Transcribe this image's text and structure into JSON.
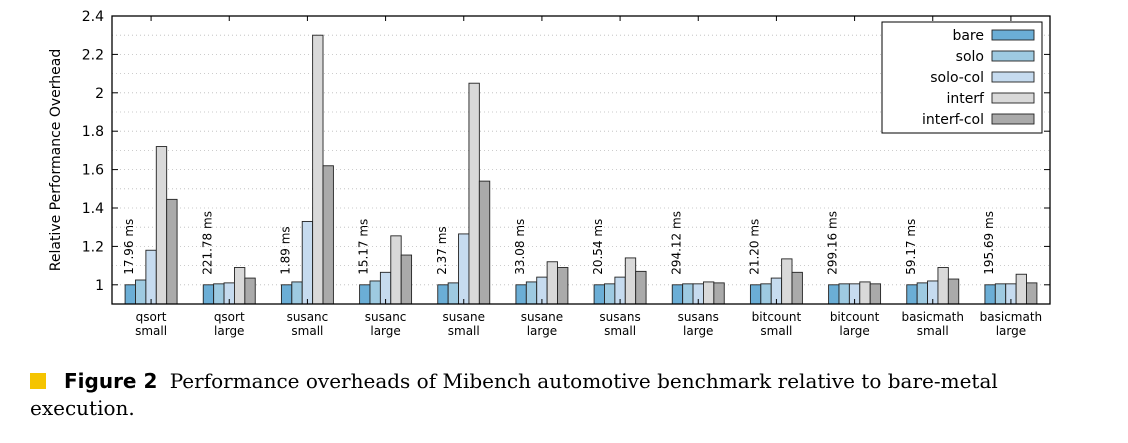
{
  "chart_data": {
    "type": "bar",
    "ylabel": "Relative Performance Overhead",
    "ylim": [
      0.9,
      2.4
    ],
    "yticks": [
      "1",
      "1.2",
      "1.4",
      "1.6",
      "1.8",
      "2",
      "2.2",
      "2.4"
    ],
    "ytick_values": [
      1,
      1.2,
      1.4,
      1.6,
      1.8,
      2,
      2.2,
      2.4
    ],
    "grid": true,
    "legend_position": "top-right",
    "categories": [
      [
        "qsort",
        "small"
      ],
      [
        "qsort",
        "large"
      ],
      [
        "susanc",
        "small"
      ],
      [
        "susanc",
        "large"
      ],
      [
        "susane",
        "small"
      ],
      [
        "susane",
        "large"
      ],
      [
        "susans",
        "small"
      ],
      [
        "susans",
        "large"
      ],
      [
        "bitcount",
        "small"
      ],
      [
        "bitcount",
        "large"
      ],
      [
        "basicmath",
        "small"
      ],
      [
        "basicmath",
        "large"
      ]
    ],
    "bar_annotations": [
      "17.96 ms",
      "221.78 ms",
      "1.89 ms",
      "15.17 ms",
      "2.37 ms",
      "33.08 ms",
      "20.54 ms",
      "294.12 ms",
      "21.20 ms",
      "299.16 ms",
      "59.17 ms",
      "195.69 ms"
    ],
    "series": [
      {
        "name": "bare",
        "color": "#6baed6",
        "values": [
          1.0,
          1.0,
          1.0,
          1.0,
          1.0,
          1.0,
          1.0,
          1.0,
          1.0,
          1.0,
          1.0,
          1.0
        ]
      },
      {
        "name": "solo",
        "color": "#9ecae1",
        "values": [
          1.025,
          1.005,
          1.015,
          1.02,
          1.01,
          1.015,
          1.005,
          1.005,
          1.005,
          1.005,
          1.01,
          1.005
        ]
      },
      {
        "name": "solo-col",
        "color": "#c6dbef",
        "values": [
          1.18,
          1.01,
          1.33,
          1.065,
          1.265,
          1.04,
          1.04,
          1.005,
          1.035,
          1.005,
          1.02,
          1.005
        ]
      },
      {
        "name": "interf",
        "color": "#d9d9d9",
        "values": [
          1.72,
          1.09,
          2.3,
          1.255,
          2.05,
          1.12,
          1.14,
          1.015,
          1.135,
          1.015,
          1.09,
          1.055
        ]
      },
      {
        "name": "interf-col",
        "color": "#aaaaaa",
        "values": [
          1.445,
          1.035,
          1.62,
          1.155,
          1.54,
          1.09,
          1.07,
          1.01,
          1.065,
          1.005,
          1.03,
          1.01
        ]
      }
    ]
  },
  "caption": {
    "label": "Figure 2",
    "text": "Performance overheads of Mibench automotive benchmark relative to bare-metal execution."
  }
}
